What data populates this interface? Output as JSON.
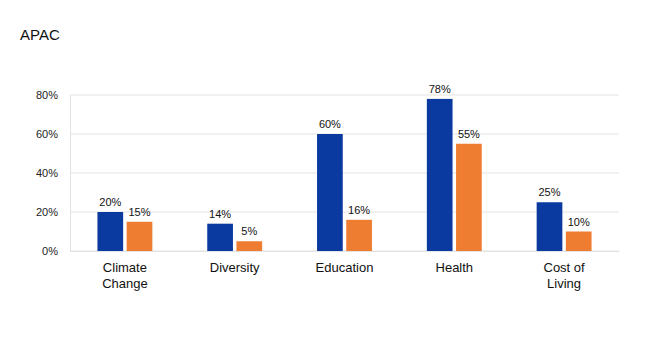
{
  "chart_data": {
    "type": "bar",
    "title": "APAC",
    "categories": [
      "Climate Change",
      "Diversity",
      "Education",
      "Health",
      "Cost of Living"
    ],
    "series": [
      {
        "color": "#0a3aa0",
        "values": [
          20,
          14,
          60,
          78,
          25
        ],
        "value_labels": [
          "20%",
          "14%",
          "60%",
          "78%",
          "25%"
        ]
      },
      {
        "color": "#ee7d31",
        "values": [
          15,
          5,
          16,
          55,
          10
        ],
        "value_labels": [
          "15%",
          "5%",
          "16%",
          "55%",
          "10%"
        ]
      }
    ],
    "ylim": [
      0,
      80
    ],
    "yticks": [
      {
        "value": 0,
        "label": "0%"
      },
      {
        "value": 20,
        "label": "20%"
      },
      {
        "value": 40,
        "label": "40%"
      },
      {
        "value": 60,
        "label": "60%"
      },
      {
        "value": 80,
        "label": "80%"
      }
    ],
    "grid": true,
    "data_labels": true
  }
}
